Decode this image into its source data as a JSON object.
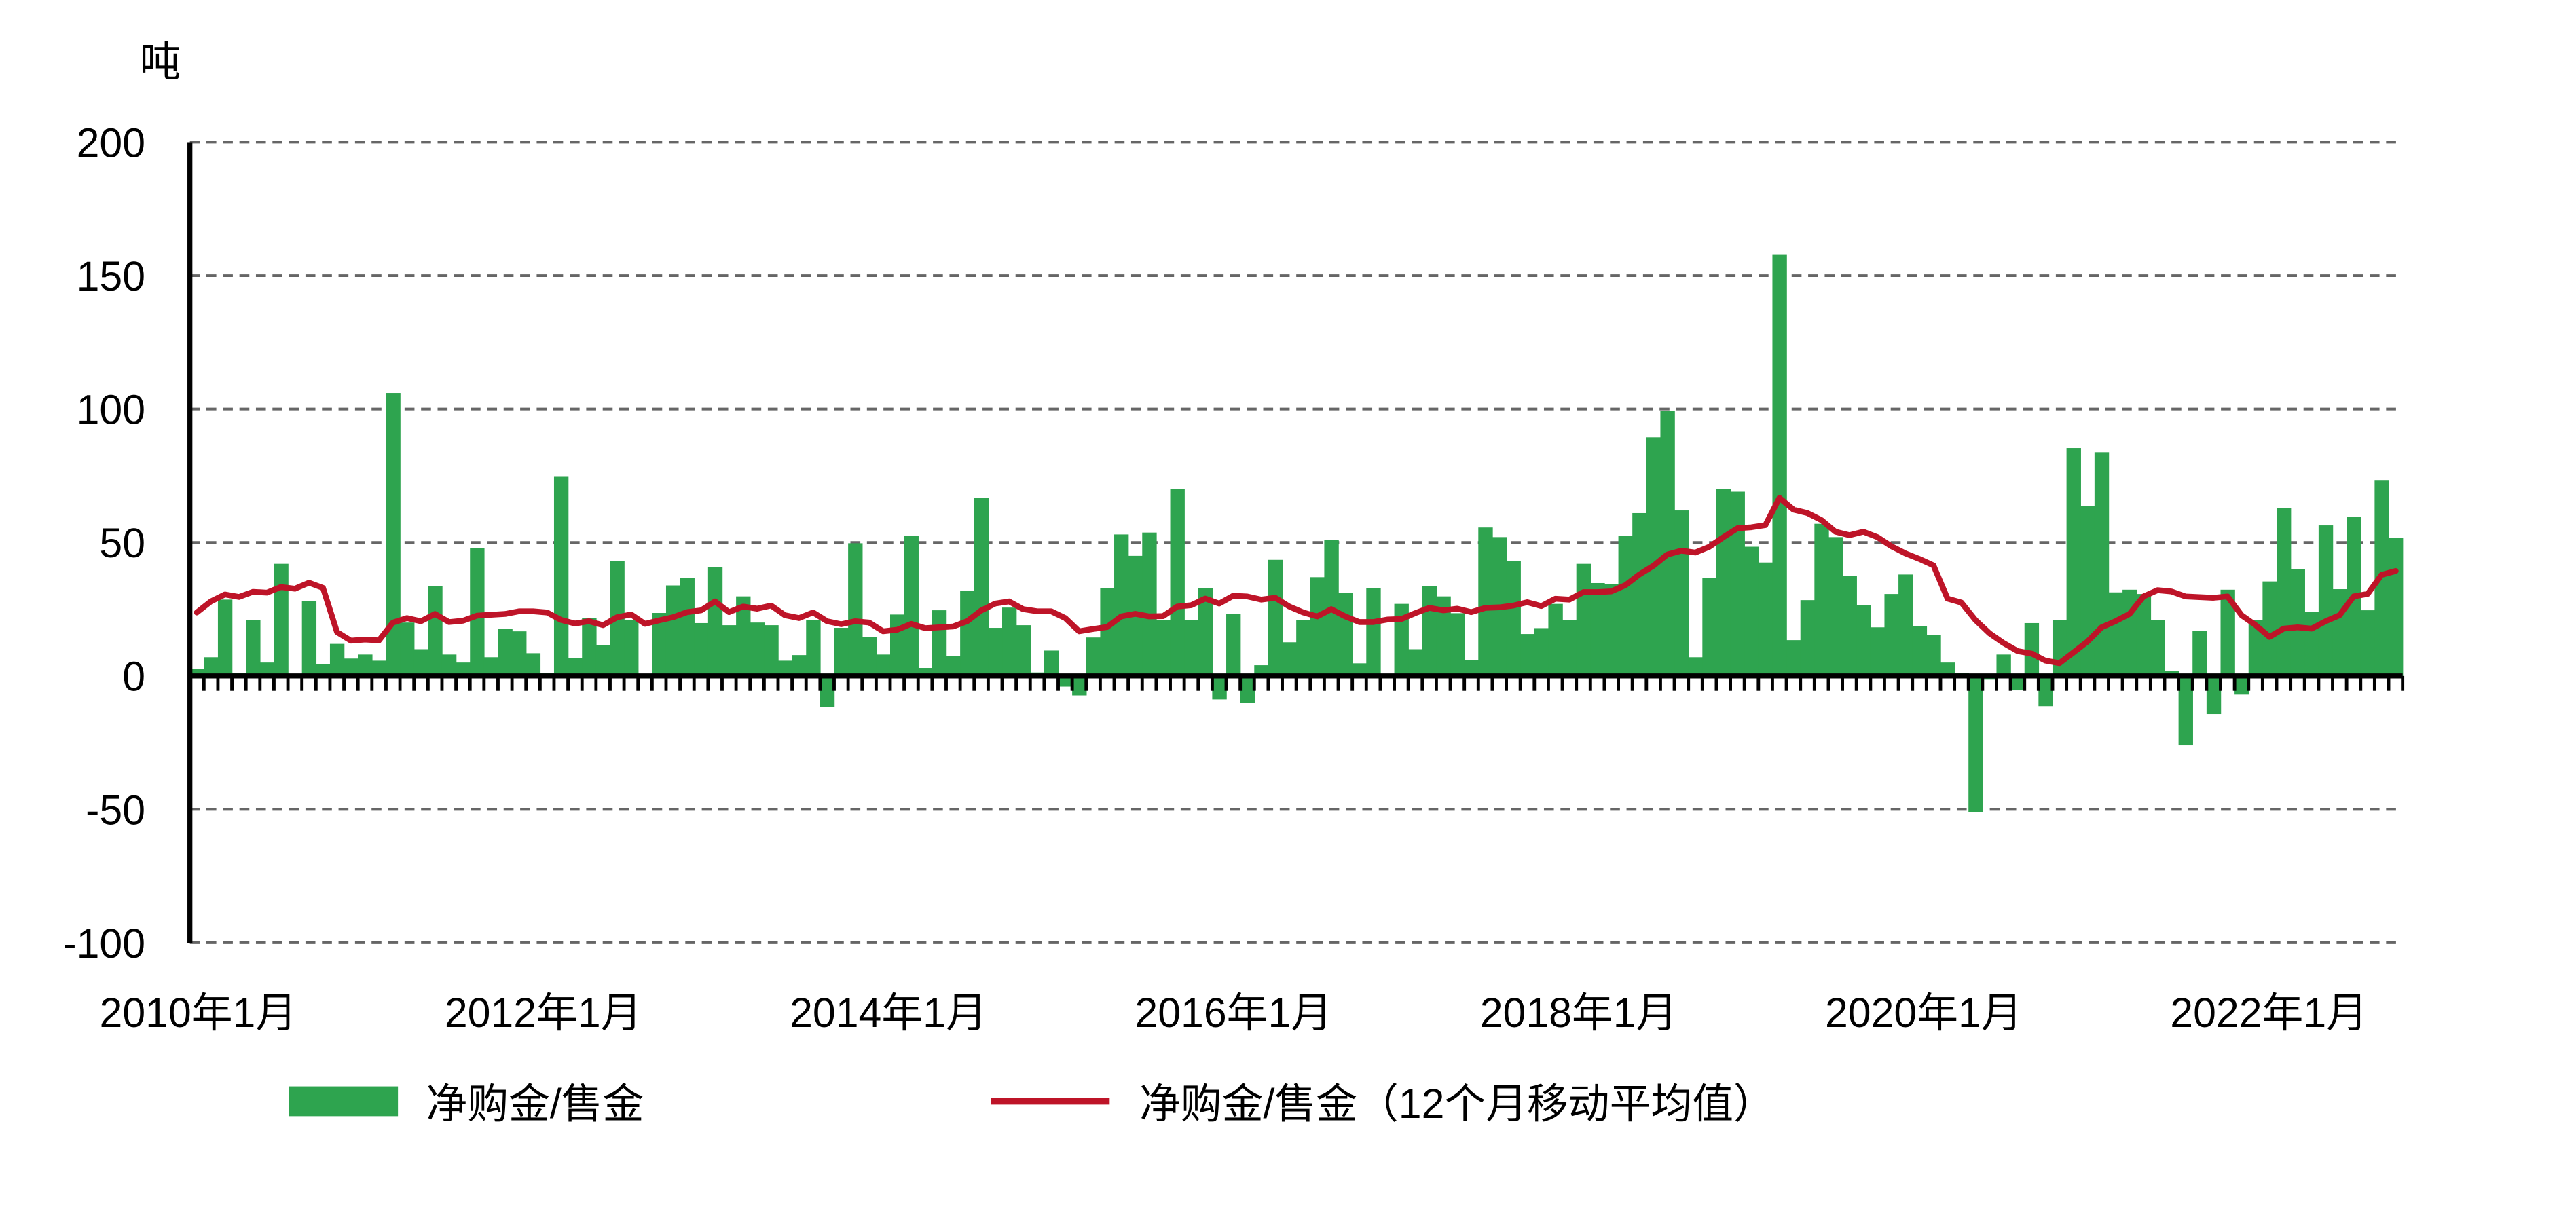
{
  "chart_data": {
    "type": "bar+line",
    "unit_label": "吨",
    "ylim": [
      -100,
      200
    ],
    "yticks": [
      200,
      150,
      100,
      50,
      0,
      -50,
      -100
    ],
    "ytick_labels": [
      "200",
      "150",
      "100",
      "50",
      "0",
      "-50",
      "-100"
    ],
    "grid": "horizontal dashed",
    "xtick_labels": [
      "2010年1月",
      "2012年1月",
      "2014年1月",
      "2016年1月",
      "2018年1月",
      "2020年1月",
      "2022年1月"
    ],
    "legend_placement": "bottom",
    "series": [
      {
        "name": "净购金/售金",
        "type": "bar",
        "color": "#2EA44F",
        "values": [
          2.6,
          7,
          28.6,
          1,
          21,
          5,
          42,
          0,
          28,
          4.4,
          12,
          6.5,
          8,
          5.7,
          106,
          20,
          10,
          33.6,
          8,
          5,
          48,
          7,
          17.6,
          16.7,
          8.5,
          1,
          74.6,
          6.6,
          21.7,
          11.6,
          43,
          21,
          0.6,
          23.6,
          33.9,
          36.7,
          19.8,
          40.8,
          19,
          29.8,
          20,
          19,
          5.7,
          7.8,
          21,
          -11.7,
          18,
          49.7,
          14.7,
          8,
          23,
          52.6,
          3,
          24.6,
          7.5,
          32,
          66.6,
          18,
          25.6,
          19,
          1.3,
          9.5,
          -4,
          -7.3,
          14.4,
          32.8,
          53,
          45,
          53.7,
          21,
          70,
          21,
          33,
          -8.8,
          23.3,
          -10,
          4,
          43.5,
          12.6,
          21,
          37,
          51,
          31,
          4.7,
          32.8,
          0,
          27,
          10,
          33.6,
          29.8,
          23.5,
          6,
          55.6,
          52,
          43,
          15.7,
          17.9,
          27,
          21,
          42,
          34.8,
          34.3,
          52.5,
          61,
          89.4,
          99.4,
          62,
          7,
          36.7,
          70,
          69,
          48.4,
          42.5,
          158,
          13.4,
          28.4,
          57,
          52,
          37.5,
          26.4,
          18.2,
          30.7,
          38,
          18.6,
          15.4,
          5,
          1,
          -51,
          -1.4,
          8,
          -5.4,
          19.8,
          -11.3,
          21,
          85.4,
          63.6,
          83.8,
          31.3,
          32.3,
          30.7,
          21,
          1.8,
          -26,
          16.8,
          -14.3,
          32.3,
          -7,
          21,
          35.4,
          63,
          40,
          24,
          56.4,
          32.5,
          59.5,
          24.6,
          73.4,
          51.6
        ]
      },
      {
        "name": "净购金/售金（12个月移动平均值）",
        "type": "line",
        "color": "#BE1428",
        "values": [
          23.8,
          27.9,
          30.5,
          29.6,
          31.5,
          31.2,
          33.3,
          32.7,
          34.9,
          33,
          16.4,
          13.2,
          13.6,
          13.3,
          20,
          21.7,
          20.5,
          23.2,
          20.2,
          20.7,
          22.6,
          22.9,
          23.2,
          24.2,
          24.2,
          23.8,
          21,
          19.6,
          20.5,
          19,
          22,
          23,
          19.5,
          20.8,
          22,
          23.9,
          24.6,
          27.9,
          23.9,
          26,
          25.2,
          26.4,
          22.7,
          21.7,
          23.8,
          20.5,
          19.4,
          20.5,
          20,
          16.7,
          17.3,
          19.5,
          17.9,
          18.2,
          18.5,
          20.5,
          24.5,
          27.1,
          27.9,
          25,
          24.2,
          24.2,
          21.7,
          16.7,
          17.6,
          18.3,
          22.3,
          23.3,
          22.3,
          22.4,
          26,
          26.5,
          29,
          27.1,
          30,
          29.8,
          28.6,
          29.3,
          26,
          23.8,
          22.3,
          25,
          22.3,
          20.2,
          20.2,
          21.1,
          21.3,
          23.5,
          25.5,
          24.6,
          25.2,
          23.9,
          25.5,
          25.7,
          26.4,
          27.6,
          26.2,
          28.9,
          28.6,
          31.4,
          31.4,
          31.7,
          34,
          38,
          41.3,
          45.5,
          46.9,
          46.2,
          48.4,
          52,
          55.3,
          55.7,
          56.5,
          66.7,
          62.3,
          61,
          58.4,
          54,
          52.7,
          54,
          52,
          48.6,
          45.9,
          43.8,
          41.4,
          29,
          27.5,
          20.9,
          16,
          12.3,
          9.3,
          8.4,
          5.7,
          4.8,
          8.8,
          12.9,
          18.2,
          20.5,
          23.2,
          29.8,
          32.1,
          31.6,
          29.8,
          29.5,
          29.3,
          29.8,
          22.7,
          19.1,
          14.6,
          17.7,
          18.2,
          17.7,
          20.5,
          22.7,
          29.8,
          30.7,
          37.9,
          39.3
        ]
      }
    ]
  }
}
